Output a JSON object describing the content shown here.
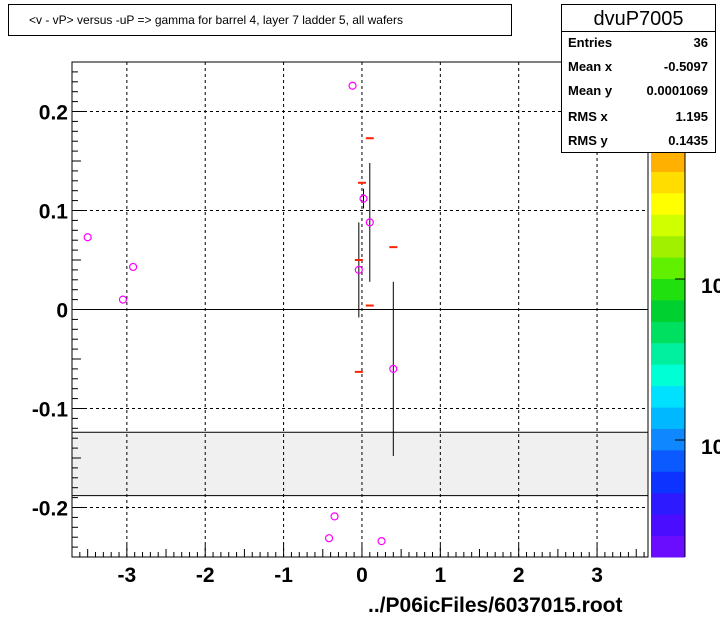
{
  "title": "<v - vP>       versus  -uP =>  gamma for barrel 4, layer 7 ladder 5, all wafers",
  "stats": {
    "name": "dvuP7005",
    "rows": [
      {
        "label": "Entries",
        "value": "36"
      },
      {
        "label": "Mean x",
        "value": "-0.5097"
      },
      {
        "label": "Mean y",
        "value": "0.0001069"
      },
      {
        "label": "RMS x",
        "value": "1.195"
      },
      {
        "label": "RMS y",
        "value": "0.1435"
      }
    ]
  },
  "footer": "../P06icFiles/6037015.root",
  "colors": {
    "marker": "#ff00ff",
    "red_marker": "#ff2200",
    "band": "#f0f0f0",
    "palette": [
      "#6a0dff",
      "#4b0dff",
      "#2d1aff",
      "#0c33ff",
      "#0a5aff",
      "#0f87ff",
      "#00b8ff",
      "#00e0ff",
      "#00ffd5",
      "#00f0a0",
      "#00e060",
      "#00d030",
      "#20e010",
      "#60f000",
      "#a0f000",
      "#d0ff00",
      "#ffff00",
      "#ffdd00",
      "#ffb000"
    ]
  },
  "chart_data": {
    "type": "scatter",
    "xlim": [
      -3.7,
      3.65
    ],
    "ylim": [
      -0.25,
      0.25
    ],
    "x_ticks": [
      {
        "value": -3,
        "label": "-3"
      },
      {
        "value": -2,
        "label": "-2"
      },
      {
        "value": -1,
        "label": "-1"
      },
      {
        "value": 0,
        "label": "0"
      },
      {
        "value": 1,
        "label": "1"
      },
      {
        "value": 2,
        "label": "2"
      },
      {
        "value": 3,
        "label": "3"
      }
    ],
    "y_ticks": [
      {
        "value": 0.2,
        "label": "0.2"
      },
      {
        "value": 0.1,
        "label": "0.1"
      },
      {
        "value": 0,
        "label": "0"
      },
      {
        "value": -0.1,
        "label": "-0.1"
      },
      {
        "value": -0.2,
        "label": "-0.2"
      }
    ],
    "grid": true,
    "band": [
      -0.188,
      -0.124
    ],
    "points": [
      {
        "x": -3.5,
        "y": 0.073,
        "err": 0
      },
      {
        "x": -3.05,
        "y": 0.01,
        "err": 0
      },
      {
        "x": -2.92,
        "y": 0.043,
        "err": 0
      },
      {
        "x": -0.12,
        "y": 0.226,
        "err": 0
      },
      {
        "x": -0.04,
        "y": 0.04,
        "err": 0.048
      },
      {
        "x": 0.02,
        "y": 0.112,
        "err": 0.01
      },
      {
        "x": 0.1,
        "y": 0.088,
        "err": 0.06
      },
      {
        "x": 0.4,
        "y": -0.06,
        "err": 0.088
      },
      {
        "x": -0.35,
        "y": -0.209,
        "err": 0
      },
      {
        "x": -0.42,
        "y": -0.231,
        "err": 0
      },
      {
        "x": 0.25,
        "y": -0.234,
        "err": 0
      }
    ],
    "red_markers": [
      {
        "x": 0.1,
        "y": 0.173
      },
      {
        "x": 0.0,
        "y": 0.128
      },
      {
        "x": 0.4,
        "y": 0.063
      },
      {
        "x": -0.04,
        "y": 0.05
      },
      {
        "x": 0.1,
        "y": 0.004
      },
      {
        "x": -0.04,
        "y": -0.063
      }
    ],
    "color_scale_labels": [
      "10",
      "10"
    ]
  }
}
